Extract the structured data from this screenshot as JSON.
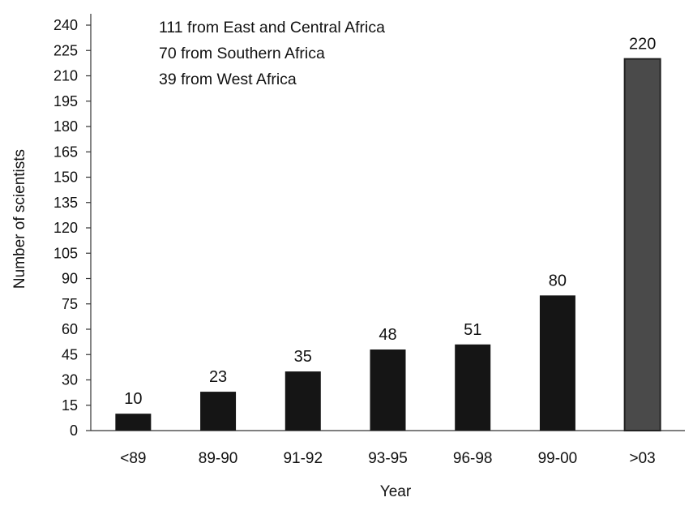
{
  "chart_data": {
    "type": "bar",
    "title": "",
    "xlabel": "Year",
    "ylabel": "Number of scientists",
    "categories": [
      "<89",
      "89-90",
      "91-92",
      "93-95",
      "96-98",
      "99-00",
      ">03"
    ],
    "values": [
      10,
      23,
      35,
      48,
      51,
      80,
      220
    ],
    "ylim": [
      0,
      240
    ],
    "yticks": [
      0,
      15,
      30,
      45,
      60,
      75,
      90,
      105,
      120,
      135,
      150,
      165,
      180,
      195,
      210,
      225,
      240
    ],
    "grid": false,
    "bar_colors": [
      "#151515",
      "#151515",
      "#151515",
      "#151515",
      "#151515",
      "#151515",
      "#4a4a4a"
    ],
    "annotations": [
      "111 from East and Central Africa",
      "70 from Southern  Africa",
      "39 from West Africa"
    ]
  }
}
